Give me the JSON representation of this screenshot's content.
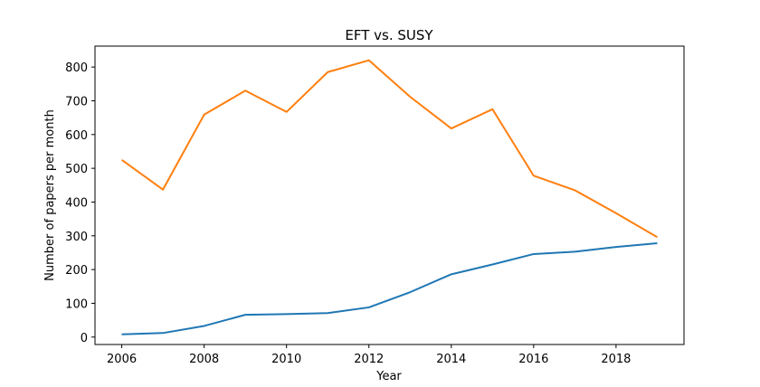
{
  "chart_data": {
    "type": "line",
    "title": "EFT vs. SUSY",
    "xlabel": "Year",
    "ylabel": "Number of papers per month",
    "xlim": [
      2005.35,
      2019.65
    ],
    "ylim": [
      -22,
      862
    ],
    "xticks": [
      2006,
      2008,
      2010,
      2012,
      2014,
      2016,
      2018
    ],
    "yticks": [
      0,
      100,
      200,
      300,
      400,
      500,
      600,
      700,
      800
    ],
    "grid": false,
    "legend": "none",
    "x": [
      2006,
      2007,
      2008,
      2009,
      2010,
      2011,
      2012,
      2013,
      2014,
      2015,
      2016,
      2017,
      2018,
      2019
    ],
    "series": [
      {
        "color": "#1f77b4",
        "values": [
          8,
          12,
          33,
          66,
          68,
          71,
          88,
          133,
          186,
          215,
          246,
          253,
          267,
          278
        ]
      },
      {
        "color": "#ff7f0e",
        "values": [
          525,
          437,
          659,
          730,
          667,
          785,
          820,
          712,
          618,
          675,
          478,
          435,
          367,
          296
        ]
      }
    ]
  }
}
